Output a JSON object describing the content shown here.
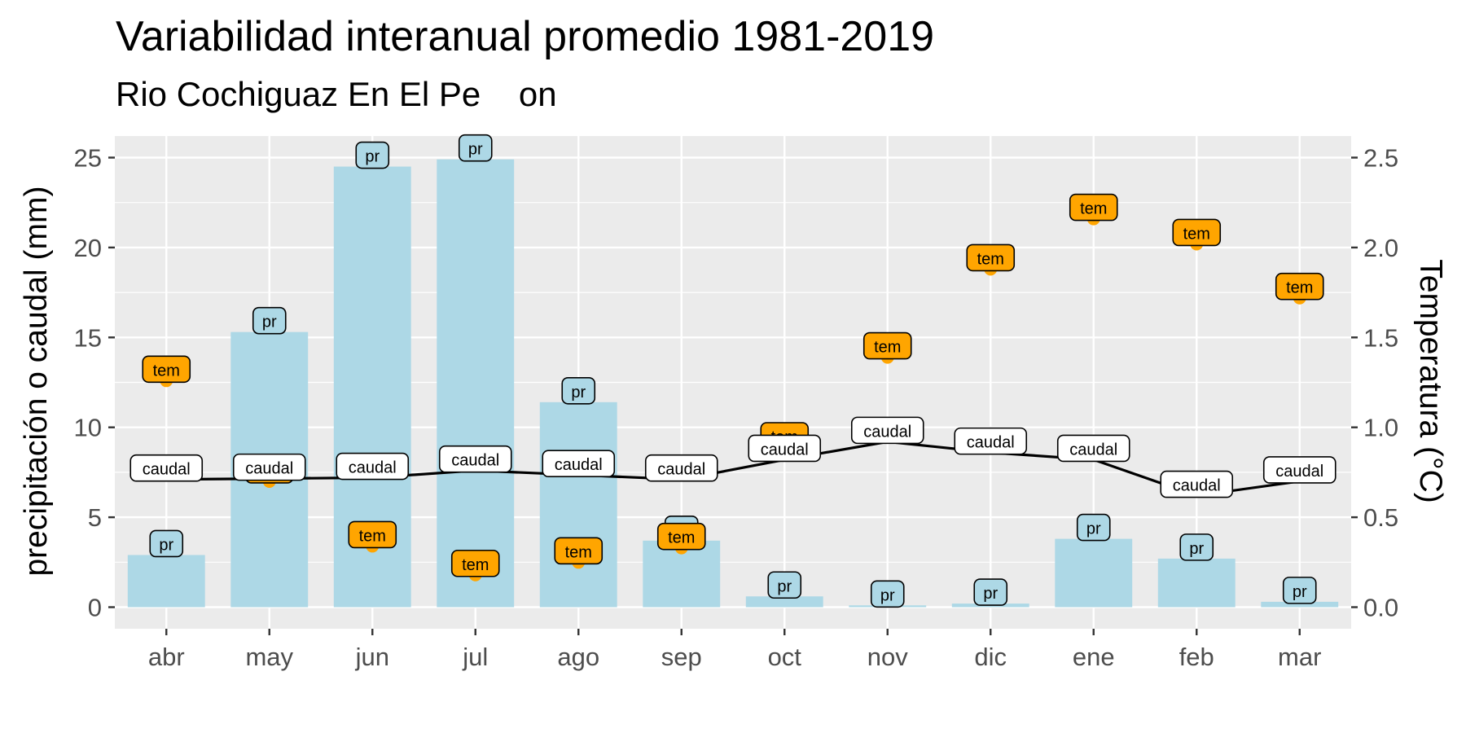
{
  "chart_data": {
    "type": "bar",
    "title": "Variabilidad interanual promedio 1981-2019",
    "subtitle": "Rio Cochiguaz En El Pe    on",
    "ylabel": "precipitación o caudal (mm)",
    "y2label": "Temperatura (°C)",
    "xlabel": "",
    "categories": [
      "abr",
      "may",
      "jun",
      "jul",
      "ago",
      "sep",
      "oct",
      "nov",
      "dic",
      "ene",
      "feb",
      "mar"
    ],
    "ylim": [
      -1.2,
      26.2
    ],
    "y_ticks": [
      "0",
      "5",
      "10",
      "15",
      "20",
      "25"
    ],
    "y2lim": [
      -0.12,
      2.62
    ],
    "y2_ticks": [
      "0.0",
      "0.5",
      "1.0",
      "1.5",
      "2.0",
      "2.5"
    ],
    "grid": true,
    "series": [
      {
        "kind": "bar",
        "axis": "left",
        "label": "pr",
        "color": "#add8e6",
        "values": [
          2.9,
          15.3,
          24.5,
          24.9,
          11.4,
          3.7,
          0.6,
          0.1,
          0.2,
          3.8,
          2.7,
          0.3
        ]
      },
      {
        "kind": "line",
        "axis": "left",
        "label": "caudal",
        "color": "#000000",
        "values": [
          7.1,
          7.15,
          7.2,
          7.6,
          7.35,
          7.1,
          8.2,
          9.2,
          8.6,
          8.2,
          6.2,
          7.0
        ]
      },
      {
        "kind": "point",
        "axis": "right",
        "label": "tem",
        "color": "#ffa500",
        "values": [
          1.26,
          0.7,
          0.34,
          0.18,
          0.25,
          0.33,
          0.89,
          1.39,
          1.88,
          2.16,
          2.02,
          1.72
        ]
      }
    ]
  }
}
